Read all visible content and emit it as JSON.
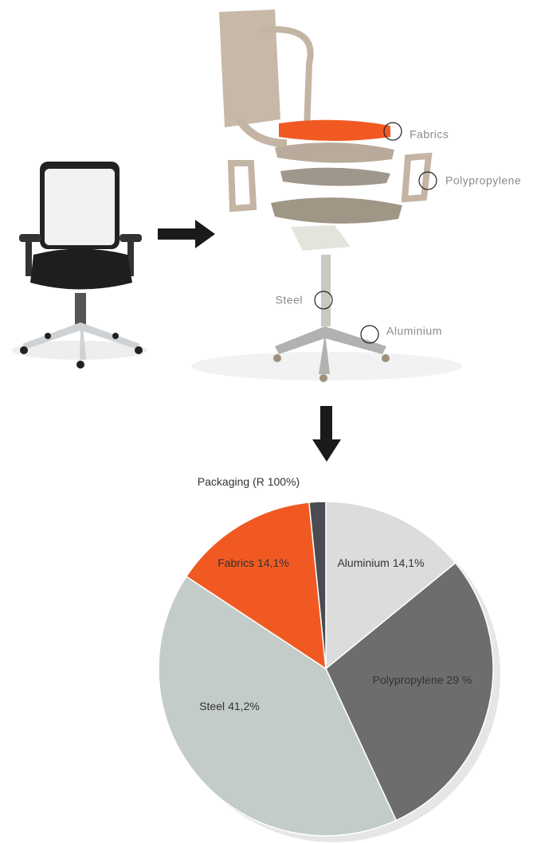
{
  "callouts": [
    "Fabrics",
    "Polypropylene",
    "Steel",
    "Aluminium"
  ],
  "chart_data": {
    "type": "pie",
    "categories": [
      "Aluminium",
      "Polypropylene",
      "Steel",
      "Fabrics",
      "Packaging (R 100%)"
    ],
    "values": [
      14.1,
      29,
      41.2,
      14.1,
      1.6
    ],
    "value_labels": [
      "14,1%",
      "29 %",
      "41,2%",
      "14,1%",
      null
    ],
    "colors": [
      "#dcdcdc",
      "#6d6d6b",
      "#c3ccc8",
      "#f05a22",
      "#4a4c52"
    ]
  }
}
